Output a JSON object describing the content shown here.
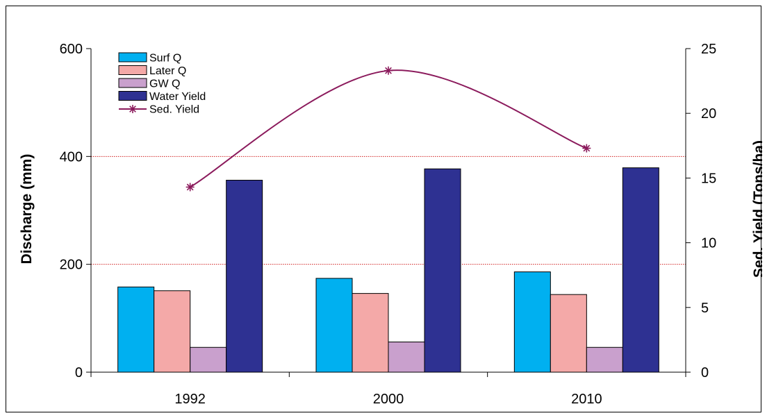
{
  "chart_data": {
    "type": "bar",
    "categories": [
      "1992",
      "2000",
      "2010"
    ],
    "series": [
      {
        "name": "Surf Q",
        "axis": "left",
        "type": "bar",
        "color": "#00b0f0",
        "values": [
          158,
          174,
          186
        ]
      },
      {
        "name": "Later Q",
        "axis": "left",
        "type": "bar",
        "color": "#f4a9a8",
        "values": [
          151,
          146,
          144
        ]
      },
      {
        "name": "GW Q",
        "axis": "left",
        "type": "bar",
        "color": "#c9a0cd",
        "values": [
          46,
          56,
          46
        ]
      },
      {
        "name": "Water Yield",
        "axis": "left",
        "type": "bar",
        "color": "#2e3192",
        "values": [
          356,
          377,
          379
        ]
      },
      {
        "name": "Sed. Yield",
        "axis": "right",
        "type": "line",
        "marker": "asterisk",
        "color": "#8b1a5c",
        "values": [
          14.3,
          23.3,
          17.3
        ]
      }
    ],
    "ylabel": "Discharge (mm)",
    "y2label": "Sed. Yield (Tons/ha)",
    "ylim": [
      0,
      600
    ],
    "y2lim": [
      0,
      25
    ],
    "yticks": [
      "0",
      "200",
      "400",
      "600"
    ],
    "y2ticks": [
      "0",
      "5",
      "10",
      "15",
      "20",
      "25"
    ],
    "grid": "horizontal dotted red at 200 and 400",
    "legend_position": "top-left"
  }
}
